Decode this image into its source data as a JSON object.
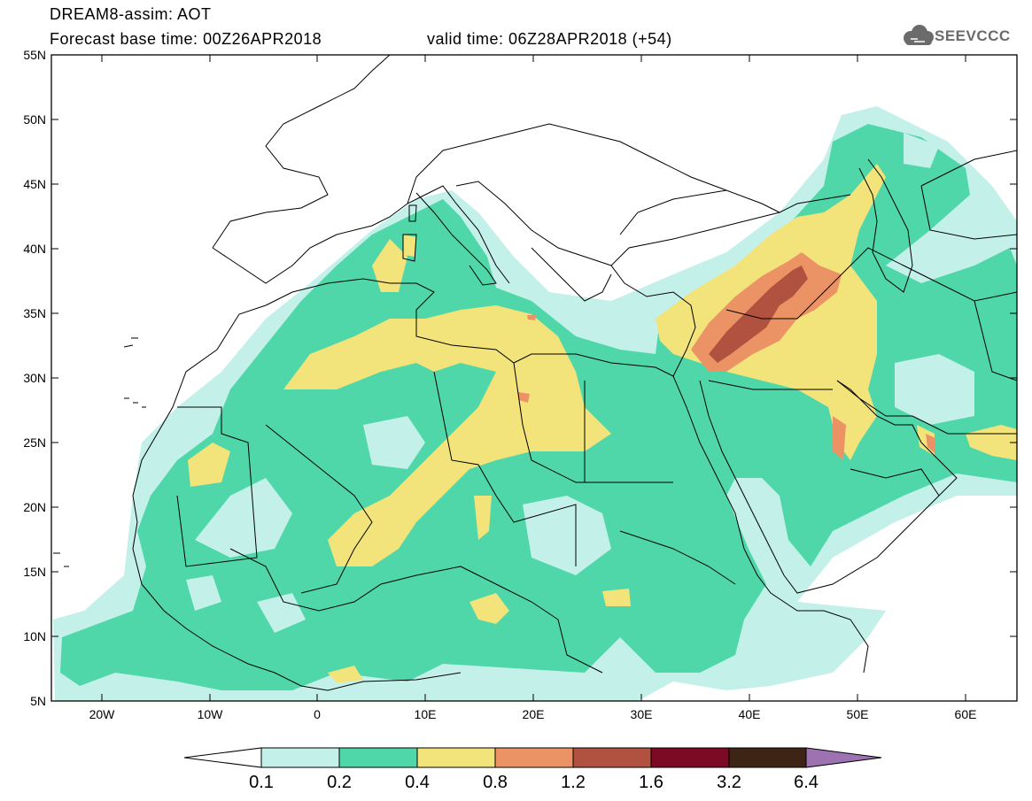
{
  "header": {
    "title_line1": "DREAM8-assim: AOT",
    "title_line2": "Forecast base time: 00Z26APR2018",
    "valid_time": "valid time: 06Z28APR2018 (+54)",
    "logo_text": "SEEVCCC"
  },
  "axes": {
    "lat_labels": [
      "55N",
      "50N",
      "45N",
      "40N",
      "35N",
      "30N",
      "25N",
      "20N",
      "15N",
      "10N",
      "5N"
    ],
    "lon_labels": [
      "20W",
      "10W",
      "0",
      "10E",
      "20E",
      "30E",
      "40E",
      "50E",
      "60E"
    ]
  },
  "colorbar": {
    "labels": [
      "0.1",
      "0.2",
      "0.4",
      "0.8",
      "1.2",
      "1.6",
      "3.2",
      "6.4"
    ],
    "colors": [
      "#c4f0ea",
      "#4fd7a9",
      "#f2e47a",
      "#ec9366",
      "#b1513f",
      "#7c0a25",
      "#3d2414",
      "#9e71b0"
    ]
  },
  "palette": {
    "aot_0_1": "#c4f0ea",
    "aot_0_2": "#4fd7a9",
    "aot_0_4": "#f2e47a",
    "aot_0_8": "#ec9366",
    "aot_1_2": "#b1513f"
  }
}
